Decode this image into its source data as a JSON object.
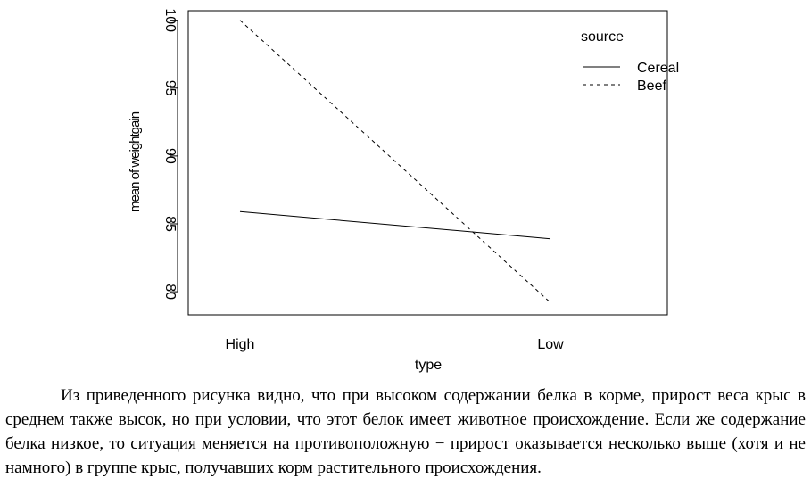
{
  "chart_data": {
    "type": "line",
    "xlabel": "type",
    "ylabel": "mean of weightgain",
    "categories": [
      "High",
      "Low"
    ],
    "yticks": [
      80,
      85,
      90,
      95,
      100
    ],
    "ylim": [
      78.3,
      100.7
    ],
    "legend": {
      "title": "source",
      "placement": "top-right"
    },
    "series": [
      {
        "name": "Cereal",
        "values": [
          85.9,
          83.9
        ],
        "style": "solid"
      },
      {
        "name": "Beef",
        "values": [
          100.0,
          79.2
        ],
        "style": "dashed"
      }
    ],
    "grid": false
  },
  "caption": "Из приведенного рисунка видно, что при высоком содержании белка в корме, прирост веса крыс в среднем также высок, но при условии, что этот белок имеет животное происхождение. Если же содержание белка низкое, то ситуация меняется на противоположную − прирост оказывается несколько выше (хотя и не намного) в группе крыс, получавших корм растительного происхождения."
}
